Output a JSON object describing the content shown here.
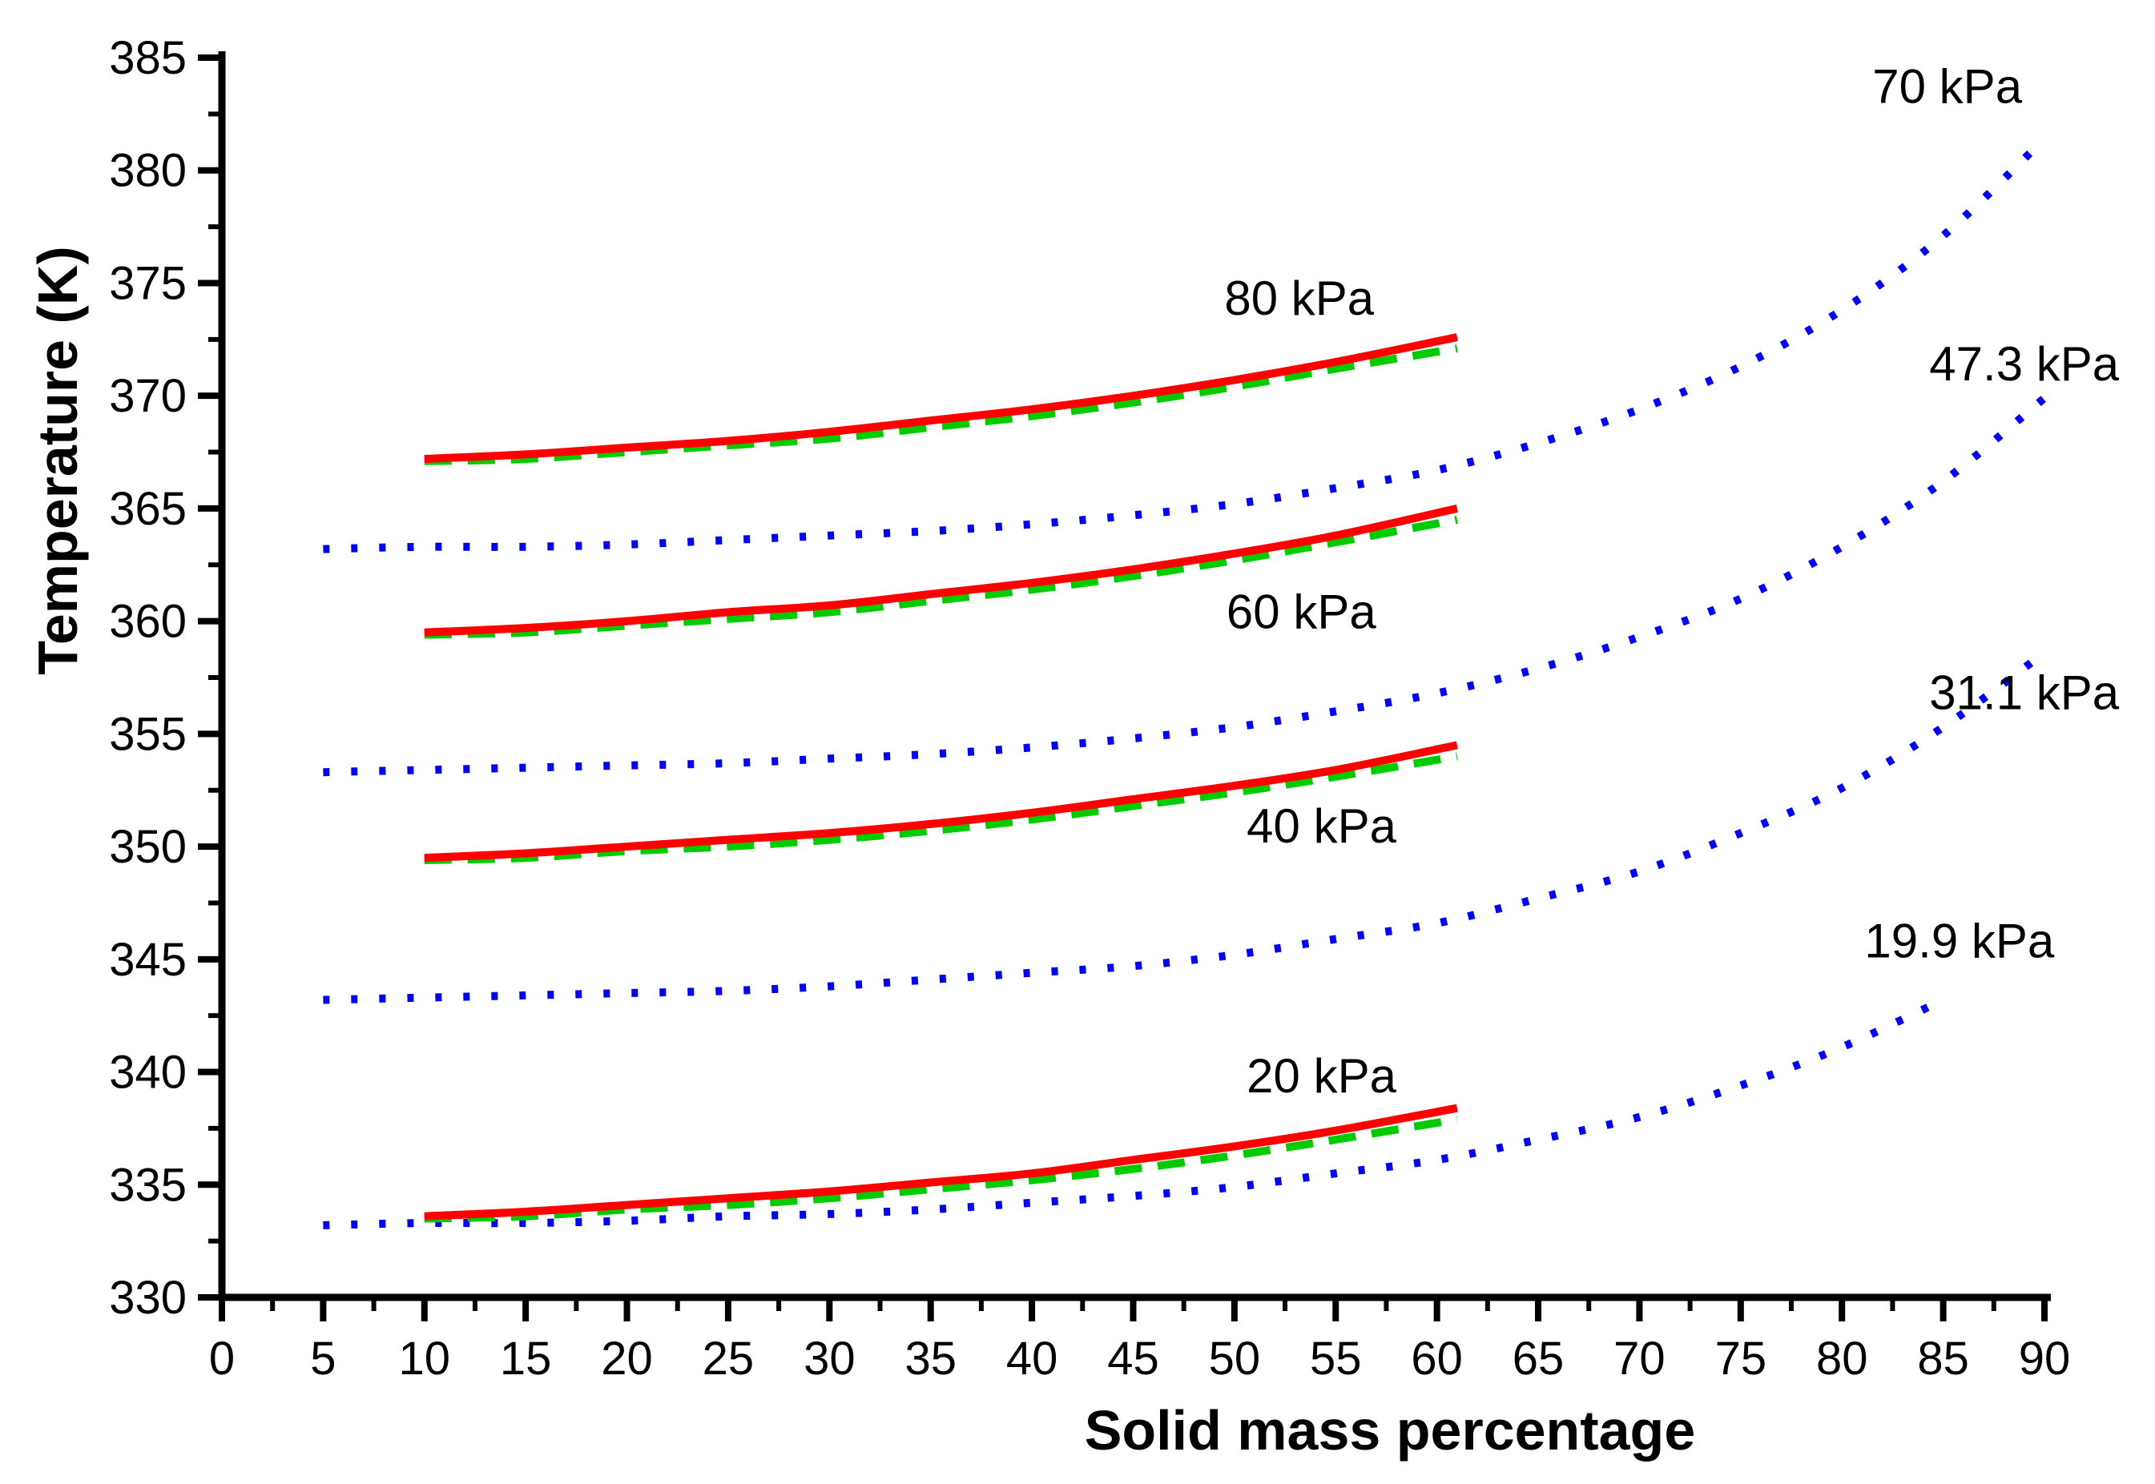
{
  "chart_data": {
    "type": "line",
    "title": "",
    "xlabel": "Solid mass percentage",
    "ylabel": "Temperature (K)",
    "xlim": [
      0,
      90
    ],
    "ylim": [
      330,
      385
    ],
    "x_major_step": 5,
    "x_minor_step": 2.5,
    "y_major_step": 5,
    "y_minor_step": 2.5,
    "grid": "off",
    "legend": "none (curves labeled by in-plot annotations)",
    "colors": {
      "axis": "#000000",
      "red_solid": "#ff0000",
      "green_dashed": "#00cc00",
      "blue_dotted": "#0000ff"
    },
    "series": [
      {
        "id": "70kpa-blue-dotted",
        "name": "70 kPa (blue dotted)",
        "color": "#0000ff",
        "style": "dotted",
        "x": [
          5,
          10,
          15,
          20,
          25,
          30,
          35,
          40,
          45,
          50,
          55,
          60,
          65,
          70,
          75,
          80,
          85,
          90
        ],
        "y": [
          363.2,
          363.3,
          363.3,
          363.4,
          363.6,
          363.8,
          364.0,
          364.3,
          364.7,
          365.2,
          365.9,
          366.7,
          367.9,
          369.4,
          371.3,
          373.8,
          377.1,
          381.4
        ]
      },
      {
        "id": "47kpa-blue-dotted",
        "name": "47.3 kPa (blue dotted)",
        "color": "#0000ff",
        "style": "dotted",
        "x": [
          5,
          10,
          15,
          20,
          25,
          30,
          35,
          40,
          45,
          50,
          55,
          60,
          65,
          70,
          75,
          80,
          85,
          90
        ],
        "y": [
          353.3,
          353.4,
          353.5,
          353.6,
          353.7,
          353.9,
          354.1,
          354.4,
          354.8,
          355.3,
          356.0,
          356.8,
          357.9,
          359.3,
          361.0,
          363.3,
          366.2,
          369.9
        ]
      },
      {
        "id": "31kpa-blue-dotted",
        "name": "31.1 kPa (blue dotted)",
        "color": "#0000ff",
        "style": "dotted",
        "x": [
          5,
          10,
          15,
          20,
          25,
          30,
          35,
          40,
          45,
          50,
          55,
          60,
          65,
          70,
          75,
          80,
          85,
          90
        ],
        "y": [
          343.2,
          343.3,
          343.4,
          343.5,
          343.6,
          343.8,
          344.1,
          344.4,
          344.7,
          345.2,
          345.9,
          346.6,
          347.7,
          348.9,
          350.6,
          352.6,
          355.3,
          358.6
        ]
      },
      {
        "id": "19kpa-blue-dotted",
        "name": "19.9 kPa (blue dotted)",
        "color": "#0000ff",
        "style": "dotted",
        "x": [
          5,
          10,
          15,
          20,
          25,
          30,
          35,
          40,
          45,
          50,
          55,
          60,
          65,
          70,
          75,
          80,
          85
        ],
        "y": [
          333.2,
          333.3,
          333.3,
          333.4,
          333.6,
          333.7,
          333.9,
          334.2,
          334.5,
          334.9,
          335.5,
          336.1,
          337.0,
          338.0,
          339.4,
          341.1,
          343.2
        ]
      },
      {
        "id": "80kpa-green-dashed",
        "name": "80 kPa (green dashed)",
        "color": "#00cc00",
        "style": "dashed",
        "x": [
          10,
          15,
          20,
          25,
          30,
          35,
          40,
          45,
          50,
          55,
          61
        ],
        "y": [
          367.1,
          367.2,
          367.5,
          367.8,
          368.1,
          368.6,
          369.1,
          369.7,
          370.4,
          371.2,
          372.1
        ]
      },
      {
        "id": "60kpa-green-dashed",
        "name": "60 kPa (green dashed)",
        "color": "#00cc00",
        "style": "dashed",
        "x": [
          10,
          15,
          20,
          25,
          30,
          35,
          40,
          45,
          50,
          55,
          61
        ],
        "y": [
          359.4,
          359.5,
          359.8,
          360.1,
          360.4,
          360.9,
          361.4,
          362.0,
          362.7,
          363.5,
          364.5
        ]
      },
      {
        "id": "40kpa-green-dashed",
        "name": "40 kPa (green dashed)",
        "color": "#00cc00",
        "style": "dashed",
        "x": [
          10,
          15,
          20,
          25,
          30,
          35,
          40,
          45,
          50,
          55,
          61
        ],
        "y": [
          349.4,
          349.5,
          349.8,
          350.0,
          350.3,
          350.7,
          351.2,
          351.8,
          352.4,
          353.1,
          354.0
        ]
      },
      {
        "id": "20kpa-green-dashed",
        "name": "20 kPa (green dashed)",
        "color": "#00cc00",
        "style": "dashed",
        "x": [
          10,
          15,
          20,
          25,
          30,
          35,
          40,
          45,
          50,
          55,
          61
        ],
        "y": [
          333.5,
          333.6,
          333.9,
          334.1,
          334.4,
          334.8,
          335.2,
          335.7,
          336.3,
          337.0,
          337.9
        ]
      },
      {
        "id": "80kpa-red-solid",
        "name": "80 kPa (red solid)",
        "color": "#ff0000",
        "style": "solid",
        "x": [
          10,
          15,
          20,
          25,
          30,
          35,
          40,
          45,
          50,
          55,
          61
        ],
        "y": [
          367.2,
          367.4,
          367.7,
          368.0,
          368.4,
          368.9,
          369.4,
          370.0,
          370.7,
          371.5,
          372.6
        ]
      },
      {
        "id": "60kpa-red-solid",
        "name": "60 kPa (red solid)",
        "color": "#ff0000",
        "style": "solid",
        "x": [
          10,
          15,
          20,
          25,
          30,
          35,
          40,
          45,
          50,
          55,
          61
        ],
        "y": [
          359.5,
          359.7,
          360.0,
          360.4,
          360.7,
          361.2,
          361.7,
          362.3,
          363.0,
          363.8,
          365.0
        ]
      },
      {
        "id": "40kpa-red-solid",
        "name": "40 kPa (red solid)",
        "color": "#ff0000",
        "style": "solid",
        "x": [
          10,
          15,
          20,
          25,
          30,
          35,
          40,
          45,
          50,
          55,
          61
        ],
        "y": [
          349.5,
          349.7,
          350.0,
          350.3,
          350.6,
          351.0,
          351.5,
          352.1,
          352.7,
          353.4,
          354.5
        ]
      },
      {
        "id": "20kpa-red-solid",
        "name": "20 kPa (red solid)",
        "color": "#ff0000",
        "style": "solid",
        "x": [
          10,
          15,
          20,
          25,
          30,
          35,
          40,
          45,
          50,
          55,
          61
        ],
        "y": [
          333.6,
          333.8,
          334.1,
          334.4,
          334.7,
          335.1,
          335.5,
          336.1,
          336.7,
          337.4,
          338.4
        ]
      }
    ],
    "annotations": [
      {
        "id": "80kpa",
        "label": "80 kPa",
        "x": 53.2,
        "y": 374.3
      },
      {
        "id": "60kpa",
        "label": "60 kPa",
        "x": 53.3,
        "y": 360.4
      },
      {
        "id": "40kpa",
        "label": "40 kPa",
        "x": 54.3,
        "y": 350.9
      },
      {
        "id": "20kpa",
        "label": "20 kPa",
        "x": 54.3,
        "y": 339.8
      },
      {
        "id": "70kpa",
        "label": "70 kPa",
        "x": 85.2,
        "y": 383.7
      },
      {
        "id": "47kpa",
        "label": "47.3 kPa",
        "x": 89.0,
        "y": 371.4
      },
      {
        "id": "31kpa",
        "label": "31.1 kPa",
        "x": 89.0,
        "y": 356.8
      },
      {
        "id": "19kpa",
        "label": "19.9 kPa",
        "x": 85.8,
        "y": 345.8
      }
    ],
    "x_tick_labels": [
      "0",
      "5",
      "10",
      "15",
      "20",
      "25",
      "30",
      "35",
      "40",
      "45",
      "50",
      "55",
      "60",
      "65",
      "70",
      "75",
      "80",
      "85",
      "90"
    ],
    "y_tick_labels": [
      "330",
      "335",
      "340",
      "345",
      "350",
      "355",
      "360",
      "365",
      "370",
      "375",
      "380",
      "385"
    ]
  }
}
